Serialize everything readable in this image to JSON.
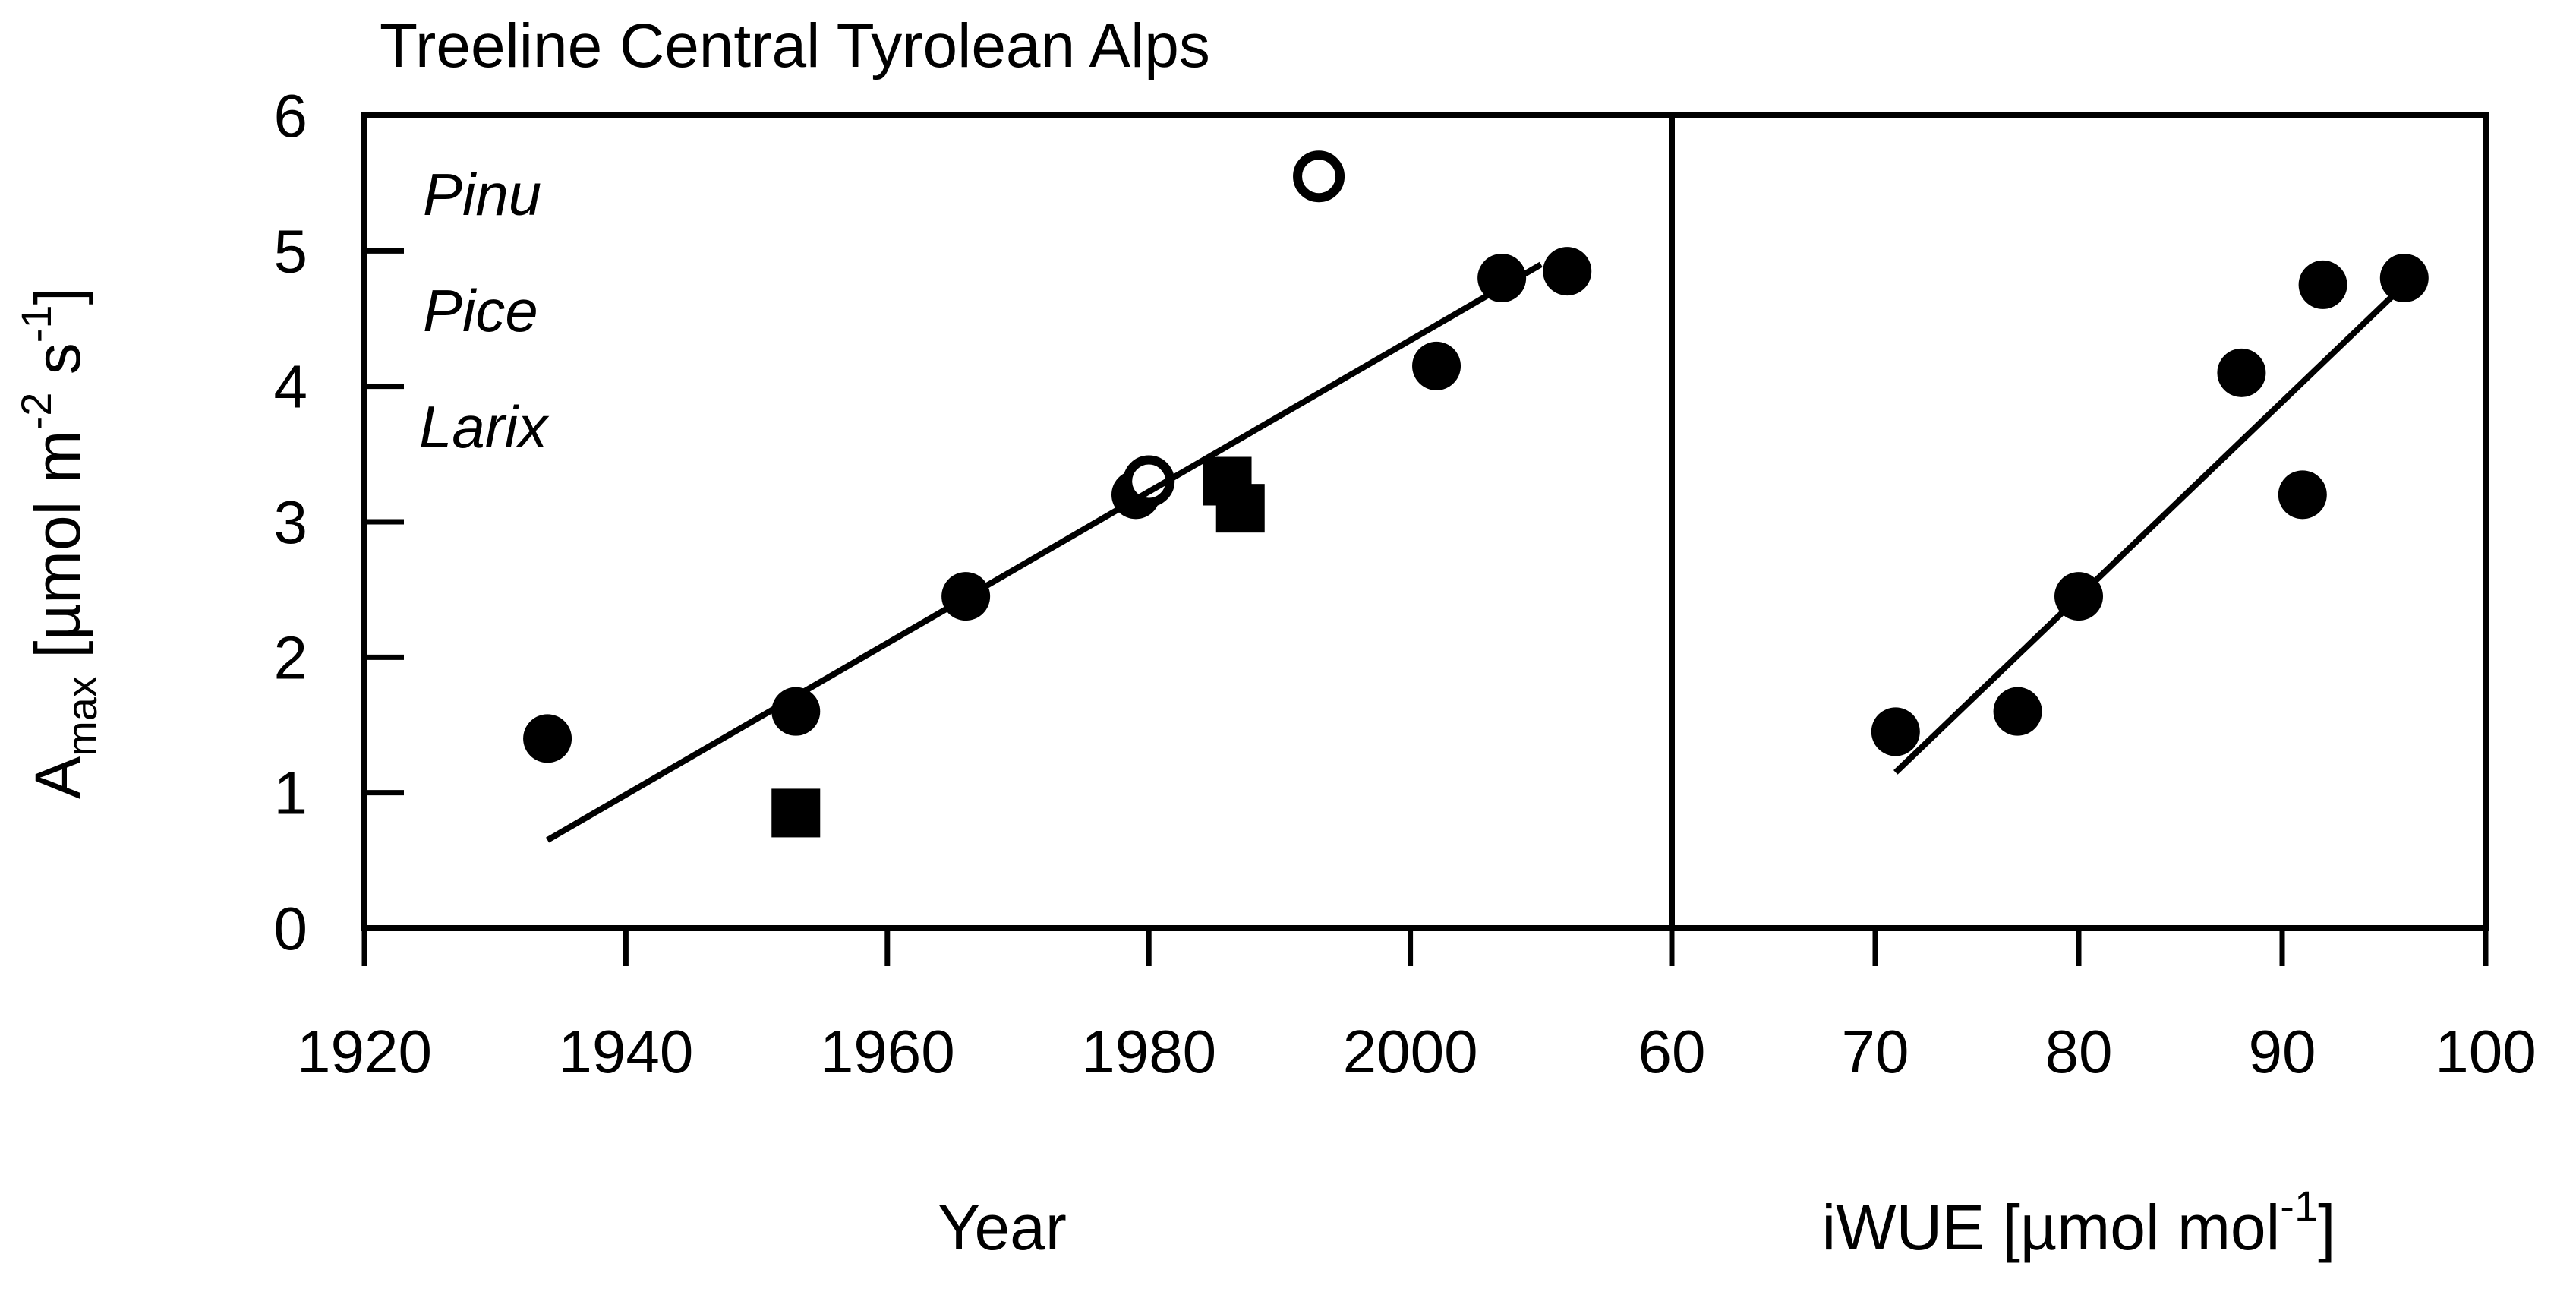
{
  "title": "Treeline Central Tyrolean Alps",
  "colors": {
    "foreground": "#000000",
    "background": "#ffffff"
  },
  "legend": {
    "items": [
      {
        "label": "Pinu",
        "note": "truncated species name, italic"
      },
      {
        "label": "Pice",
        "note": "truncated species name, italic"
      },
      {
        "label": "Larix",
        "note": "truncated species name, italic"
      }
    ]
  },
  "axis_text": {
    "ylabel_base": "A",
    "ylabel_sub": "max",
    "ylabel_mid": " [µmol m",
    "ylabel_sup1": "-2",
    "ylabel_mid2": " s",
    "ylabel_sup2": "-1",
    "ylabel_close": "]",
    "iwue_base": "iWUE [µmol mol",
    "iwue_sup": "-1",
    "iwue_close": "]"
  },
  "chart_data": [
    {
      "type": "scatter",
      "panel": "left",
      "title": "Treeline Central Tyrolean Alps",
      "xlabel": "Year",
      "ylabel": "Amax [umol m-2 s-1]",
      "xlim": [
        1920,
        2020
      ],
      "ylim": [
        0,
        6
      ],
      "xticks": [
        1920,
        1940,
        1960,
        1980,
        2000
      ],
      "yticks": [
        0,
        1,
        2,
        3,
        4,
        5,
        6
      ],
      "grid": false,
      "legend_position": "upper-left",
      "series": [
        {
          "name": "evergreen-conifers-filled-circle",
          "marker": "circle-filled",
          "points": [
            [
              1934,
              1.4
            ],
            [
              1953,
              1.6
            ],
            [
              1966,
              2.45
            ],
            [
              1979,
              3.2
            ],
            [
              2002,
              4.15
            ],
            [
              2007,
              4.8
            ],
            [
              2012,
              4.85
            ]
          ]
        },
        {
          "name": "open-circle",
          "marker": "circle-open",
          "points": [
            [
              1980,
              3.3
            ],
            [
              1993,
              5.55
            ]
          ]
        },
        {
          "name": "filled-square",
          "marker": "square-filled",
          "points": [
            [
              1953,
              0.85
            ],
            [
              1986,
              3.3
            ],
            [
              1987,
              3.1
            ]
          ]
        }
      ],
      "trendline": {
        "x1": 1934,
        "y1": 0.65,
        "x2": 2010,
        "y2": 4.9
      }
    },
    {
      "type": "scatter",
      "panel": "right",
      "xlabel": "iWUE [µmol mol-1]",
      "xlim": [
        60,
        100
      ],
      "ylim": [
        0,
        6
      ],
      "xticks": [
        60,
        70,
        80,
        90,
        100
      ],
      "grid": false,
      "series": [
        {
          "name": "filled-circle",
          "marker": "circle-filled",
          "points": [
            [
              71,
              1.45
            ],
            [
              77,
              1.6
            ],
            [
              80,
              2.45
            ],
            [
              88,
              4.1
            ],
            [
              91,
              3.2
            ],
            [
              92,
              4.75
            ],
            [
              96,
              4.8
            ]
          ]
        }
      ],
      "trendline": {
        "x1": 71,
        "y1": 1.15,
        "x2": 96,
        "y2": 4.75
      }
    }
  ]
}
